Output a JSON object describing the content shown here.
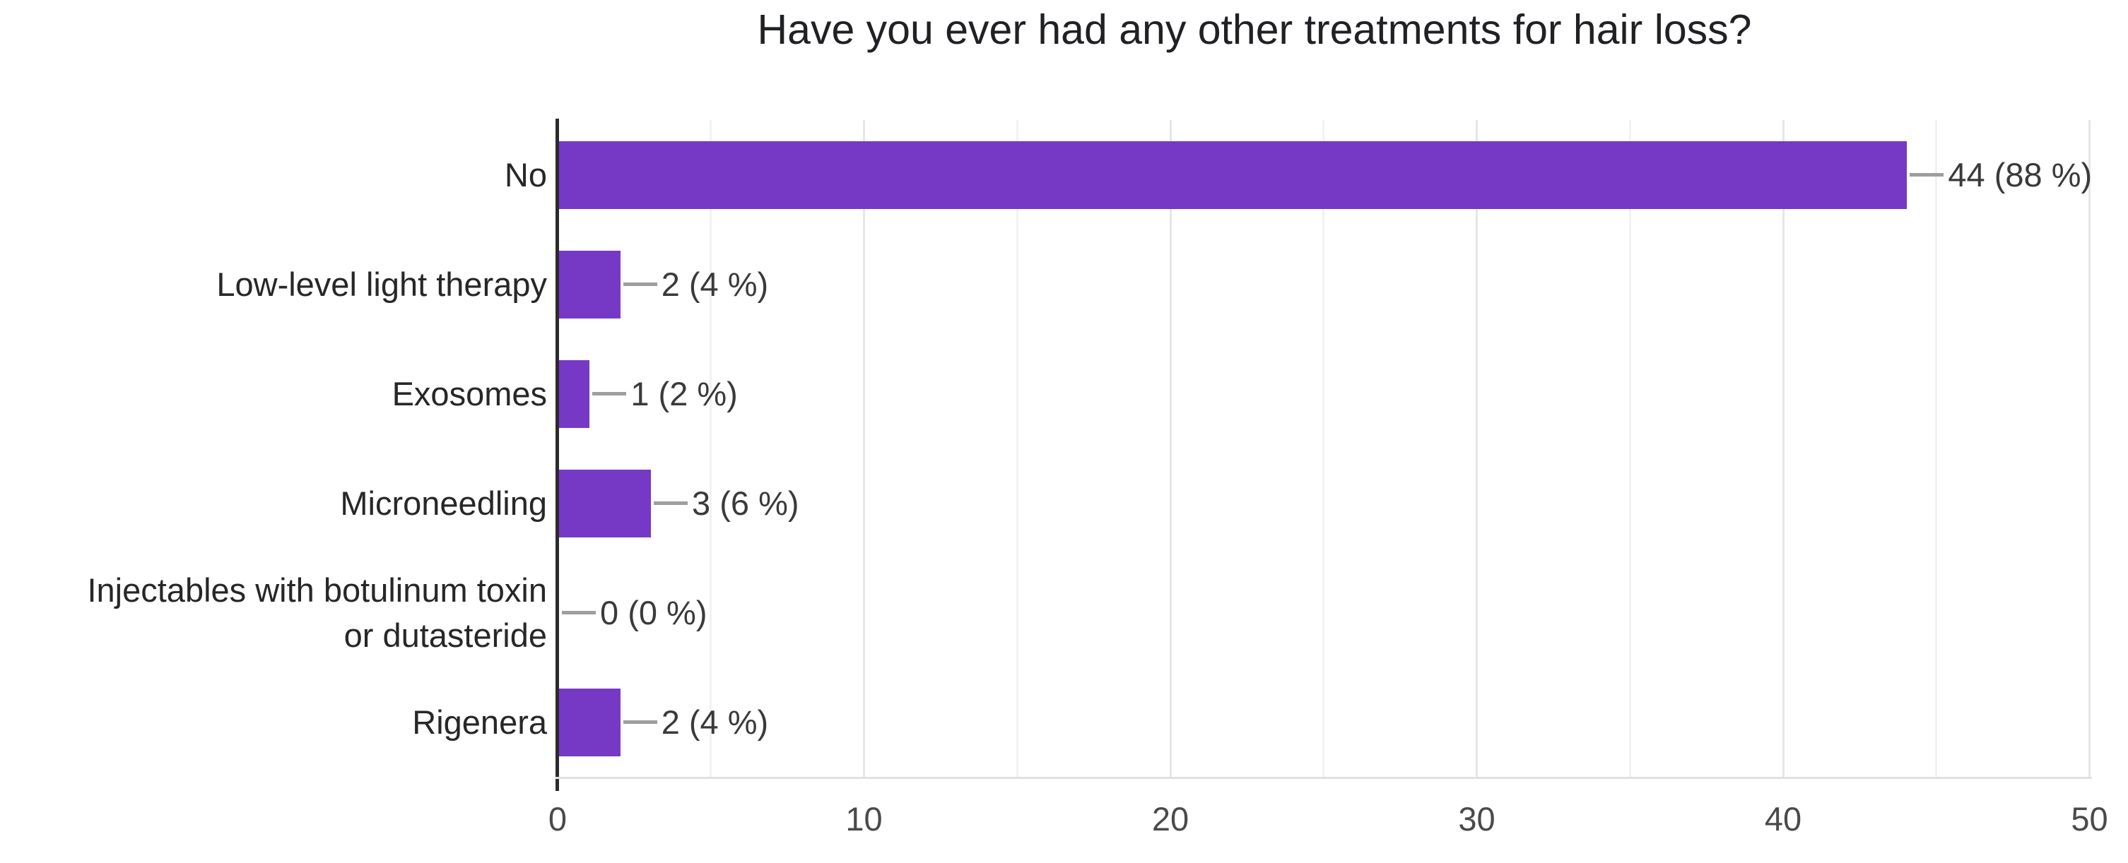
{
  "chart_data": {
    "type": "bar",
    "orientation": "horizontal",
    "title": "Have you ever had any other treatments for hair loss?",
    "categories": [
      "No",
      "Low-level light therapy",
      "Exosomes",
      "Microneedling",
      "Injectables with botulinum toxin or dutasteride",
      "Rigenera"
    ],
    "label_lines": [
      [
        "No"
      ],
      [
        "Low-level light therapy"
      ],
      [
        "Exosomes"
      ],
      [
        "Microneedling"
      ],
      [
        "Injectables with botulinum toxin",
        "or dutasteride"
      ],
      [
        "Rigenera"
      ]
    ],
    "values": [
      44,
      2,
      1,
      3,
      0,
      2
    ],
    "percentages": [
      88,
      4,
      2,
      6,
      0,
      4
    ],
    "value_labels": [
      "44 (88 %)",
      "2 (4 %)",
      "1 (2 %)",
      "3 (6 %)",
      "0 (0 %)",
      "2 (4 %)"
    ],
    "x_ticks": [
      0,
      10,
      20,
      30,
      40,
      50
    ],
    "x_tick_labels": [
      "0",
      "10",
      "20",
      "30",
      "40",
      "50"
    ],
    "xlim": [
      0,
      50
    ],
    "gridlines": "vertical every 5 (minor) and every 10 (major)",
    "legend": "none",
    "colors": {
      "bar": "#7639C6",
      "connector": "#9e9e9e",
      "axis": "#2b2b2b",
      "gridline_major": "#e6e6e6",
      "gridline_minor": "#f2f2f2",
      "title_text": "#202124",
      "category_text": "#272727",
      "value_text": "#3a3a3a",
      "tick_text": "#4a4a4a"
    }
  }
}
